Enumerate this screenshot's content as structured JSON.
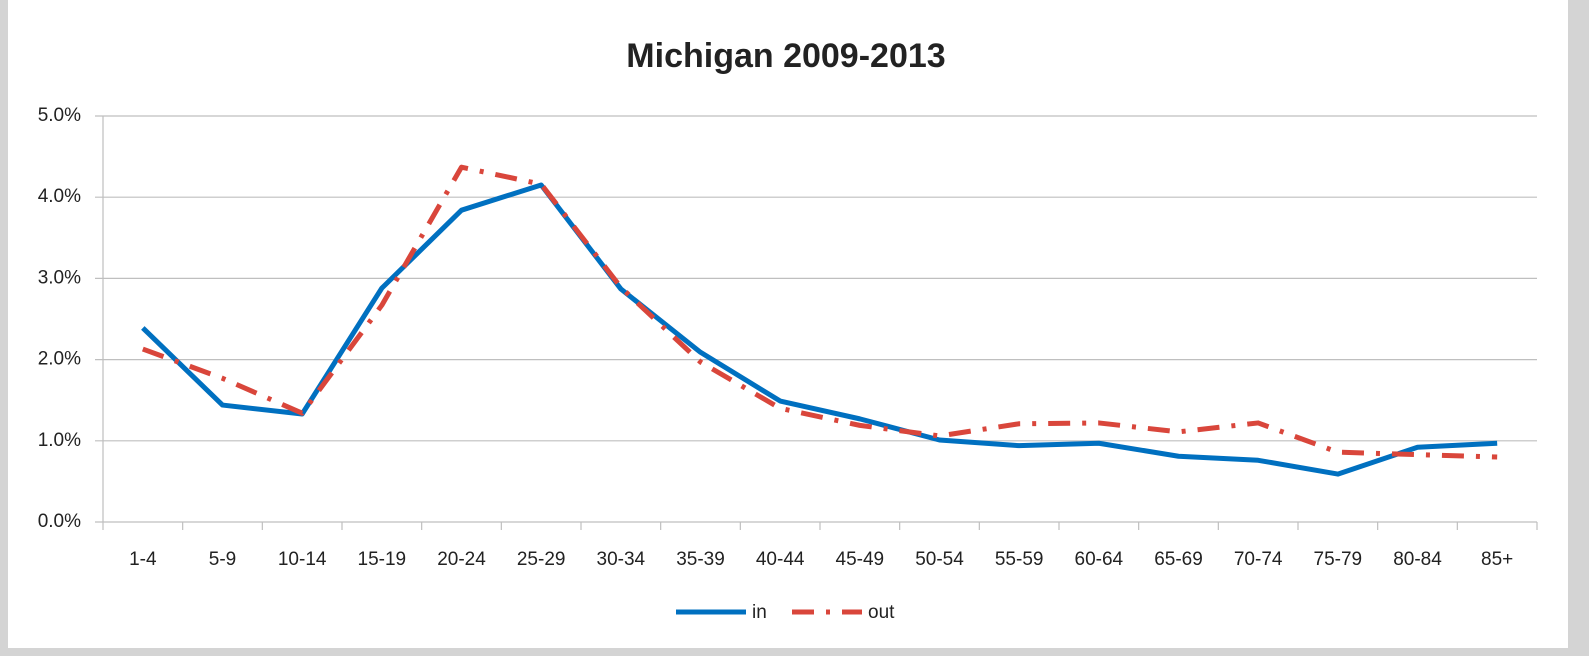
{
  "chart_data": {
    "type": "line",
    "title": "Michigan 2009-2013",
    "categories": [
      "1-4",
      "5-9",
      "10-14",
      "15-19",
      "20-24",
      "25-29",
      "30-34",
      "35-39",
      "40-44",
      "45-49",
      "50-54",
      "55-59",
      "60-64",
      "65-69",
      "70-74",
      "75-79",
      "80-84",
      "85+"
    ],
    "series": [
      {
        "name": "in",
        "color": "#0070c0",
        "dash": "solid",
        "values": [
          2.39,
          1.44,
          1.33,
          2.88,
          3.84,
          4.15,
          2.87,
          2.09,
          1.49,
          1.27,
          1.01,
          0.94,
          0.97,
          0.81,
          0.76,
          0.59,
          0.92,
          0.97
        ]
      },
      {
        "name": "out",
        "color": "#d9463b",
        "dash": "dashdot",
        "values": [
          2.13,
          1.77,
          1.34,
          2.67,
          4.37,
          4.16,
          2.89,
          1.97,
          1.4,
          1.19,
          1.06,
          1.21,
          1.22,
          1.11,
          1.22,
          0.86,
          0.83,
          0.8
        ]
      }
    ],
    "ylim": [
      0,
      5
    ],
    "yticks": [
      {
        "value": 0,
        "label": "0.0%"
      },
      {
        "value": 1,
        "label": "1.0%"
      },
      {
        "value": 2,
        "label": "2.0%"
      },
      {
        "value": 3,
        "label": "3.0%"
      },
      {
        "value": 4,
        "label": "4.0%"
      },
      {
        "value": 5,
        "label": "5.0%"
      }
    ],
    "grid": true,
    "legend": "bottom"
  }
}
